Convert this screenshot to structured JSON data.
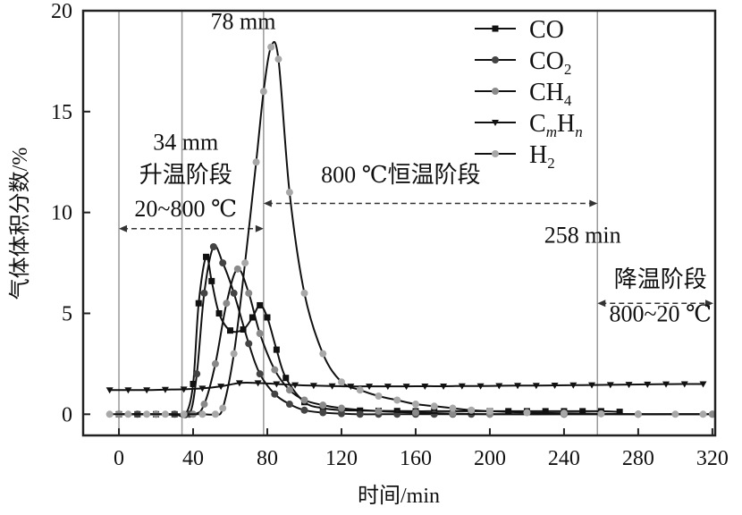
{
  "chart_data": {
    "type": "line",
    "title": "",
    "xlabel": "时间/min",
    "ylabel": "气体体积分数/%",
    "xlim": [
      -19.3,
      321.5
    ],
    "ylim": [
      -1.05,
      20
    ],
    "xticks": [
      0,
      40,
      80,
      120,
      160,
      200,
      240,
      280,
      320
    ],
    "yticks": [
      0,
      5,
      10,
      15,
      20
    ],
    "grid": false,
    "legend_position": "top-right",
    "vertical_lines": [
      0,
      34,
      78,
      258
    ],
    "series": [
      {
        "name": "CO",
        "label_main": "CO",
        "label_sub": "",
        "marker": "square",
        "color": "#111111",
        "points": [
          [
            0,
            0
          ],
          [
            10,
            0
          ],
          [
            20,
            0
          ],
          [
            30,
            0
          ],
          [
            36,
            0
          ],
          [
            40,
            1.5
          ],
          [
            43,
            5.5
          ],
          [
            47,
            7.8
          ],
          [
            50,
            6.6
          ],
          [
            54,
            5
          ],
          [
            60,
            4.15
          ],
          [
            67,
            4.2
          ],
          [
            72,
            4.8
          ],
          [
            76,
            5.4
          ],
          [
            80,
            4.8
          ],
          [
            85,
            3.2
          ],
          [
            90,
            1.8
          ],
          [
            100,
            0.6
          ],
          [
            110,
            0.3
          ],
          [
            120,
            0.2
          ],
          [
            130,
            0.18
          ],
          [
            140,
            0.17
          ],
          [
            150,
            0.16
          ],
          [
            160,
            0.15
          ],
          [
            170,
            0.15
          ],
          [
            180,
            0.15
          ],
          [
            190,
            0.15
          ],
          [
            200,
            0.15
          ],
          [
            210,
            0.15
          ],
          [
            220,
            0.15
          ],
          [
            230,
            0.15
          ],
          [
            240,
            0.15
          ],
          [
            250,
            0.15
          ],
          [
            260,
            0.15
          ],
          [
            270,
            0.12
          ]
        ]
      },
      {
        "name": "CO2",
        "label_main": "CO",
        "label_sub": "2",
        "marker": "circle",
        "color": "#444444",
        "points": [
          [
            0,
            0
          ],
          [
            10,
            0
          ],
          [
            20,
            0
          ],
          [
            30,
            0
          ],
          [
            38,
            0
          ],
          [
            42,
            2
          ],
          [
            46,
            6
          ],
          [
            51,
            8.3
          ],
          [
            56,
            7.5
          ],
          [
            62,
            6
          ],
          [
            70,
            3.5
          ],
          [
            76,
            2
          ],
          [
            84,
            1
          ],
          [
            92,
            0.5
          ],
          [
            100,
            0.2
          ],
          [
            110,
            0.08
          ],
          [
            120,
            0.03
          ],
          [
            130,
            0
          ],
          [
            140,
            0
          ],
          [
            150,
            0
          ],
          [
            160,
            0
          ],
          [
            170,
            0
          ],
          [
            180,
            0
          ],
          [
            190,
            0
          ],
          [
            200,
            0
          ],
          [
            240,
            0
          ],
          [
            280,
            0
          ],
          [
            320,
            0
          ]
        ]
      },
      {
        "name": "CH4",
        "label_main": "CH",
        "label_sub": "4",
        "marker": "circle",
        "color": "#8a8a8a",
        "points": [
          [
            0,
            0
          ],
          [
            20,
            0
          ],
          [
            40,
            0
          ],
          [
            46,
            0.5
          ],
          [
            52,
            2.5
          ],
          [
            58,
            5.5
          ],
          [
            64,
            7.2
          ],
          [
            70,
            6
          ],
          [
            76,
            4
          ],
          [
            84,
            2.2
          ],
          [
            92,
            1.2
          ],
          [
            100,
            0.7
          ],
          [
            110,
            0.45
          ],
          [
            120,
            0.3
          ],
          [
            140,
            0.15
          ],
          [
            160,
            0.08
          ],
          [
            180,
            0.03
          ],
          [
            200,
            0
          ],
          [
            240,
            0
          ],
          [
            280,
            0
          ],
          [
            320,
            0
          ]
        ]
      },
      {
        "name": "CmHn",
        "label_main": "C",
        "label_sub": "m",
        "label_main2": "H",
        "label_sub2": "n",
        "marker": "triangle-down",
        "color": "#111111",
        "points": [
          [
            -5,
            1.2
          ],
          [
            5,
            1.2
          ],
          [
            15,
            1.2
          ],
          [
            25,
            1.22
          ],
          [
            35,
            1.24
          ],
          [
            45,
            1.28
          ],
          [
            55,
            1.38
          ],
          [
            65,
            1.55
          ],
          [
            75,
            1.55
          ],
          [
            85,
            1.5
          ],
          [
            95,
            1.45
          ],
          [
            105,
            1.42
          ],
          [
            115,
            1.4
          ],
          [
            125,
            1.38
          ],
          [
            135,
            1.38
          ],
          [
            145,
            1.38
          ],
          [
            155,
            1.38
          ],
          [
            165,
            1.39
          ],
          [
            175,
            1.39
          ],
          [
            185,
            1.4
          ],
          [
            195,
            1.4
          ],
          [
            205,
            1.41
          ],
          [
            215,
            1.42
          ],
          [
            225,
            1.42
          ],
          [
            235,
            1.43
          ],
          [
            245,
            1.44
          ],
          [
            255,
            1.45
          ],
          [
            265,
            1.46
          ],
          [
            275,
            1.47
          ],
          [
            285,
            1.48
          ],
          [
            295,
            1.49
          ],
          [
            305,
            1.5
          ],
          [
            315,
            1.5
          ]
        ]
      },
      {
        "name": "H2",
        "label_main": "H",
        "label_sub": "2",
        "marker": "circle",
        "color": "#a8a8a8",
        "points": [
          [
            -5,
            0
          ],
          [
            5,
            0
          ],
          [
            15,
            0
          ],
          [
            25,
            0
          ],
          [
            35,
            0
          ],
          [
            45,
            0
          ],
          [
            52,
            0
          ],
          [
            56,
            0.3
          ],
          [
            62,
            3
          ],
          [
            68,
            7.5
          ],
          [
            74,
            12.5
          ],
          [
            78,
            16
          ],
          [
            82,
            18.2
          ],
          [
            86,
            17.6
          ],
          [
            92,
            11
          ],
          [
            100,
            6
          ],
          [
            110,
            3
          ],
          [
            120,
            1.6
          ],
          [
            130,
            1.2
          ],
          [
            140,
            0.9
          ],
          [
            150,
            0.7
          ],
          [
            160,
            0.5
          ],
          [
            170,
            0.4
          ],
          [
            180,
            0.3
          ],
          [
            190,
            0.2
          ],
          [
            200,
            0.15
          ],
          [
            220,
            0.08
          ],
          [
            240,
            0.05
          ],
          [
            260,
            0.02
          ],
          [
            280,
            0
          ],
          [
            300,
            0
          ],
          [
            315,
            0
          ]
        ]
      }
    ],
    "annotations": [
      {
        "text": "78 mm",
        "x": 67,
        "y": 19.1
      },
      {
        "text": "34 mm",
        "x": 36,
        "y": 13.1
      },
      {
        "text": "升温阶段",
        "x": 36,
        "y": 11.5
      },
      {
        "text": "20~800 ℃",
        "x": 36,
        "y": 9.8
      },
      {
        "text": "800 ℃恒温阶段",
        "x": 152,
        "y": 11.5
      },
      {
        "text": "258 min",
        "x": 250,
        "y": 8.5
      },
      {
        "text": "降温阶段",
        "x": 292,
        "y": 6.3
      },
      {
        "text": "800~20 ℃",
        "x": 292,
        "y": 4.6
      }
    ],
    "arrows": [
      {
        "from": 0,
        "to": 78,
        "y": 9.2
      },
      {
        "from": 78,
        "to": 258,
        "y": 10.45
      },
      {
        "from": 258,
        "to": 321,
        "y": 5.5
      }
    ]
  }
}
